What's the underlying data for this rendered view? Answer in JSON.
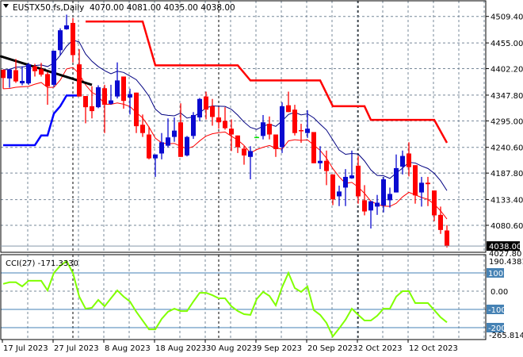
{
  "header": {
    "symbol": "EUSTX50.fs,Daily",
    "ohlc": "4070.00 4081.00 4035.00 4038.00"
  },
  "indicator": {
    "label": "CCI(27) -171.3330"
  },
  "colors": {
    "bull": "#0a0ad0",
    "bear": "#ff0000",
    "doji": "#00e000",
    "ma_high": "#000080",
    "ma_low": "#ff0000",
    "upper_band": "#ff0000",
    "lower_band": "#0000ff",
    "trendline": "#000000",
    "cci": "#80ff00",
    "cci_levels": "#4682b4",
    "grid": "#778899"
  },
  "chart_data": [
    {
      "type": "candlestick",
      "title": "EUSTX50.fs,Daily",
      "ylim": [
        4027.8,
        4509.4
      ],
      "price_ticks": [
        "4509.40",
        "4455.00",
        "4402.20",
        "4347.80",
        "4295.00",
        "4240.60",
        "4187.80",
        "4133.40",
        "4080.60"
      ],
      "current_price": "4038.00",
      "lower_price_label": "4027.80",
      "date_labels": [
        {
          "index": 0,
          "label": "17 Jul 2023"
        },
        {
          "index": 8,
          "label": "27 Jul 2023"
        },
        {
          "index": 16,
          "label": "8 Aug 2023"
        },
        {
          "index": 24,
          "label": "18 Aug 2023"
        },
        {
          "index": 32,
          "label": "30 Aug 2023"
        },
        {
          "index": 40,
          "label": "9 Sep 2023"
        },
        {
          "index": 48,
          "label": "20 Sep 2023"
        },
        {
          "index": 56,
          "label": "2 Oct 2023"
        },
        {
          "index": 64,
          "label": "12 Oct 2023"
        }
      ],
      "period_separators": [
        11,
        34,
        56
      ],
      "ohlc": [
        [
          4400,
          4400,
          4361,
          4383
        ],
        [
          4382,
          4402,
          4363,
          4400
        ],
        [
          4399,
          4422,
          4373,
          4376
        ],
        [
          4372,
          4407,
          4368,
          4377
        ],
        [
          4372,
          4414,
          4369,
          4411
        ],
        [
          4407,
          4412,
          4386,
          4397
        ],
        [
          4401,
          4414,
          4386,
          4390
        ],
        [
          4391,
          4395,
          4328,
          4366
        ],
        [
          4369,
          4439,
          4365,
          4439
        ],
        [
          4440,
          4485,
          4430,
          4481
        ],
        [
          4483,
          4513,
          4482,
          4491
        ],
        [
          4496,
          4506,
          4415,
          4430
        ],
        [
          4411,
          4442,
          4345,
          4345
        ],
        [
          4346,
          4346,
          4290,
          4323
        ],
        [
          4325,
          4366,
          4300,
          4315
        ],
        [
          4323,
          4368,
          4321,
          4364
        ],
        [
          4362,
          4369,
          4270,
          4328
        ],
        [
          4330,
          4369,
          4328,
          4337
        ],
        [
          4345,
          4415,
          4341,
          4378
        ],
        [
          4386,
          4386,
          4320,
          4336
        ],
        [
          4343,
          4361,
          4308,
          4350
        ],
        [
          4353,
          4353,
          4270,
          4284
        ],
        [
          4287,
          4308,
          4262,
          4270
        ],
        [
          4267,
          4283,
          4216,
          4218
        ],
        [
          4218,
          4226,
          4180,
          4226
        ],
        [
          4228,
          4270,
          4216,
          4251
        ],
        [
          4244,
          4300,
          4241,
          4261
        ],
        [
          4262,
          4302,
          4252,
          4275
        ],
        [
          4292,
          4331,
          4221,
          4221
        ],
        [
          4224,
          4264,
          4222,
          4262
        ],
        [
          4264,
          4313,
          4258,
          4307
        ],
        [
          4302,
          4342,
          4294,
          4340
        ],
        [
          4345,
          4355,
          4298,
          4318
        ],
        [
          4325,
          4340,
          4285,
          4303
        ],
        [
          4302,
          4323,
          4279,
          4292
        ],
        [
          4295,
          4323,
          4277,
          4280
        ],
        [
          4279,
          4298,
          4233,
          4267
        ],
        [
          4265,
          4265,
          4229,
          4241
        ],
        [
          4238,
          4243,
          4205,
          4224
        ],
        [
          4221,
          4243,
          4175,
          4233
        ],
        [
          4262,
          4263,
          4261,
          4262
        ],
        [
          4264,
          4307,
          4257,
          4292
        ],
        [
          4289,
          4304,
          4257,
          4267
        ],
        [
          4267,
          4267,
          4221,
          4237
        ],
        [
          4241,
          4333,
          4229,
          4325
        ],
        [
          4327,
          4355,
          4313,
          4313
        ],
        [
          4318,
          4328,
          4265,
          4270
        ],
        [
          4276,
          4289,
          4250,
          4274
        ],
        [
          4270,
          4317,
          4260,
          4279
        ],
        [
          4272,
          4272,
          4208,
          4208
        ],
        [
          4208,
          4243,
          4196,
          4213
        ],
        [
          4213,
          4234,
          4163,
          4192
        ],
        [
          4185,
          4185,
          4122,
          4134
        ],
        [
          4140,
          4162,
          4120,
          4150
        ],
        [
          4158,
          4196,
          4120,
          4180
        ],
        [
          4177,
          4234,
          4176,
          4183
        ],
        [
          4203,
          4223,
          4125,
          4140
        ],
        [
          4132,
          4163,
          4101,
          4109
        ],
        [
          4111,
          4130,
          4074,
          4130
        ],
        [
          4119,
          4143,
          4102,
          4127
        ],
        [
          4121,
          4180,
          4107,
          4175
        ],
        [
          4132,
          4158,
          4117,
          4145
        ],
        [
          4148,
          4226,
          4148,
          4198
        ],
        [
          4201,
          4234,
          4185,
          4223
        ],
        [
          4228,
          4251,
          4181,
          4200
        ],
        [
          4204,
          4204,
          4125,
          4142
        ],
        [
          4148,
          4180,
          4119,
          4168
        ],
        [
          4168,
          4180,
          4120,
          4165
        ],
        [
          4152,
          4152,
          4089,
          4101
        ],
        [
          4102,
          4119,
          4063,
          4071
        ],
        [
          4070,
          4081,
          4035,
          4038
        ]
      ],
      "upper_band": [
        [
          13,
          4499
        ],
        [
          22,
          4499
        ],
        [
          24,
          4409
        ],
        [
          37,
          4409
        ],
        [
          39,
          4378
        ],
        [
          50,
          4378
        ],
        [
          52,
          4325
        ],
        [
          57,
          4325
        ],
        [
          58,
          4297
        ],
        [
          68,
          4297
        ],
        [
          70,
          4250
        ]
      ],
      "lower_band": [
        [
          0,
          4245
        ],
        [
          5,
          4245
        ],
        [
          6,
          4265
        ],
        [
          7,
          4265
        ],
        [
          8,
          4310
        ],
        [
          9,
          4325
        ],
        [
          10,
          4347
        ],
        [
          12,
          4347
        ]
      ],
      "trendline": [
        [
          -0.5,
          4428
        ],
        [
          14,
          4369
        ]
      ]
    },
    {
      "type": "line",
      "title": "CCI(27) -171.3330",
      "ylim": [
        -265.8146,
        190.4381
      ],
      "max_label": "190.4381",
      "min_label": "-265.8146",
      "levels": [
        {
          "value": 100,
          "label": "100"
        },
        {
          "value": 0,
          "label": "0.00"
        },
        {
          "value": -100,
          "label": "-100"
        },
        {
          "value": -200,
          "label": "-200"
        }
      ],
      "values": [
        40,
        49,
        49,
        26,
        57,
        57,
        57,
        4,
        100,
        139,
        165,
        100,
        -30,
        -96,
        -91,
        -48,
        -83,
        -39,
        4,
        -30,
        -57,
        -113,
        -161,
        -209,
        -209,
        -152,
        -113,
        -96,
        -109,
        -109,
        -57,
        -9,
        -9,
        -22,
        -39,
        -39,
        -83,
        -109,
        -126,
        -130,
        -43,
        -4,
        -26,
        -78,
        22,
        100,
        17,
        -4,
        26,
        -104,
        -130,
        -174,
        -248,
        -204,
        -157,
        -96,
        -130,
        -161,
        -161,
        -135,
        -96,
        -96,
        -30,
        0,
        0,
        -65,
        -65,
        -65,
        -104,
        -143,
        -171
      ]
    }
  ]
}
